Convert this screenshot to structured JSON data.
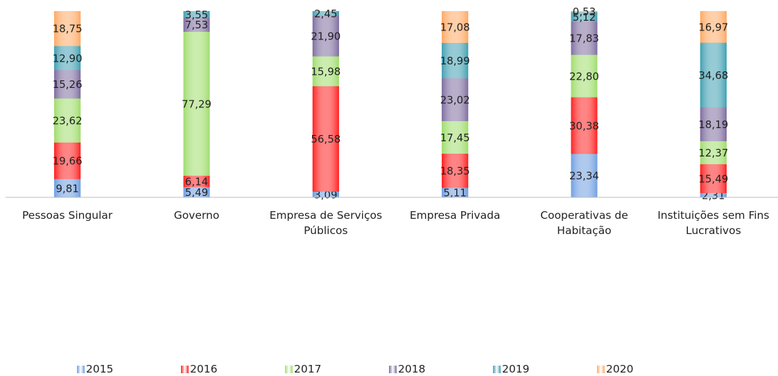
{
  "chart_data": {
    "type": "stacked_bar",
    "categories": [
      "Pessoas Singular",
      "Governo",
      "Empresa de Serviços Públicos",
      "Empresa Privada",
      "Cooperativas de Habitação",
      "Instituições sem Fins Lucrativos"
    ],
    "ylim": [
      0,
      100
    ],
    "series": [
      {
        "name": "2015",
        "color": "#6f9ee0",
        "values": [
          9.81,
          5.49,
          3.09,
          5.11,
          23.34,
          2.31
        ],
        "value_labels": [
          "9,81",
          "5,49",
          "3,09",
          "5,11",
          "23,34",
          "2,31"
        ]
      },
      {
        "name": "2016",
        "color": "#ff1f1f",
        "values": [
          19.66,
          6.14,
          56.58,
          18.35,
          30.38,
          15.49
        ],
        "value_labels": [
          "19,66",
          "6,14",
          "56,58",
          "18,35",
          "30,38",
          "15,49"
        ]
      },
      {
        "name": "2017",
        "color": "#9edc6a",
        "values": [
          23.62,
          77.29,
          15.98,
          17.45,
          22.8,
          12.37
        ],
        "value_labels": [
          "23,62",
          "77,29",
          "15,98",
          "17,45",
          "22,80",
          "12,37"
        ]
      },
      {
        "name": "2018",
        "color": "#7d6c9e",
        "values": [
          15.26,
          7.53,
          21.9,
          23.02,
          17.83,
          18.19
        ],
        "value_labels": [
          "15,26",
          "7,53",
          "21,90",
          "23,02",
          "17,83",
          "18,19"
        ]
      },
      {
        "name": "2019",
        "color": "#3f9fb2",
        "values": [
          12.9,
          3.55,
          2.45,
          18.99,
          5.12,
          34.68
        ],
        "value_labels": [
          "12,90",
          "3,55",
          "2,45",
          "18,99",
          "5,12",
          "34,68"
        ]
      },
      {
        "name": "2020",
        "color": "#ffa862",
        "values": [
          18.75,
          null,
          null,
          17.08,
          0.53,
          16.97
        ],
        "value_labels": [
          "18,75",
          null,
          null,
          "17,08",
          "0,53",
          "16,97"
        ]
      }
    ]
  }
}
